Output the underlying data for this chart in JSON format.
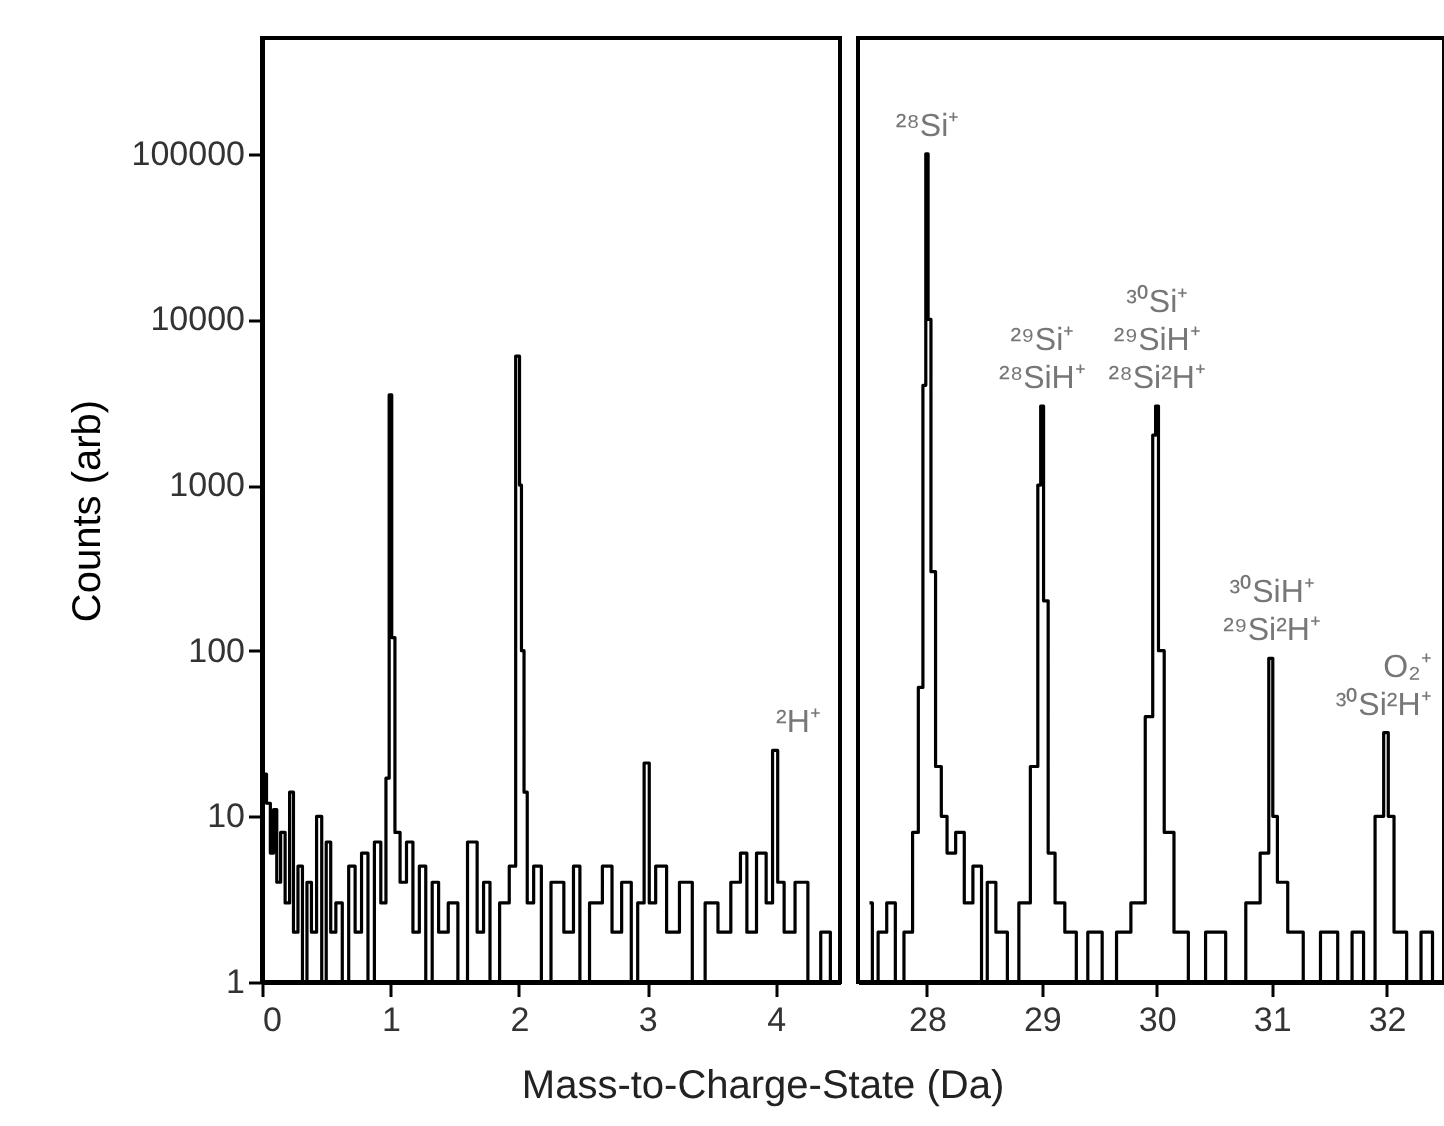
{
  "chart_data": [
    {
      "type": "step",
      "ylabel": "Counts (arb)",
      "xlabel": "Mass-to-Charge-State (Da)",
      "color": "#000000",
      "log": "y",
      "grid": false,
      "x": [
        0,
        0.02,
        0.05,
        0.08,
        0.1,
        0.13,
        0.16,
        0.2,
        0.23,
        0.26,
        0.3,
        0.33,
        0.37,
        0.4,
        0.45,
        0.48,
        0.52,
        0.55,
        0.6,
        0.65,
        0.7,
        0.75,
        0.8,
        0.85,
        0.9,
        0.95,
        0.98,
        1.0,
        1.02,
        1.05,
        1.1,
        1.15,
        1.2,
        1.25,
        1.3,
        1.35,
        1.4,
        1.5,
        1.55,
        1.65,
        1.7,
        1.75,
        1.8,
        1.9,
        1.95,
        2.0,
        2.01,
        2.03,
        2.05,
        2.08,
        2.15,
        2.2,
        2.3,
        2.4,
        2.45,
        2.5,
        2.6,
        2.7,
        2.75,
        2.85,
        2.9,
        2.95,
        3.0,
        3.03,
        3.1,
        3.2,
        3.3,
        3.4,
        3.5,
        3.6,
        3.7,
        3.75,
        3.8,
        3.9,
        3.95,
        4.0,
        4.03,
        4.1,
        4.2,
        4.3,
        4.4,
        4.45
      ],
      "values": [
        30,
        18,
        12,
        6,
        11,
        4,
        8,
        3,
        14,
        2,
        5,
        1,
        4,
        2,
        10,
        1,
        7,
        2,
        3,
        1,
        5,
        2,
        6,
        1,
        7,
        3,
        17,
        3500,
        120,
        8,
        4,
        7,
        2,
        5,
        1,
        4,
        2,
        3,
        1,
        7,
        2,
        4,
        1,
        3,
        5,
        6000,
        1000,
        100,
        14,
        3,
        5,
        1,
        4,
        2,
        5,
        1,
        3,
        5,
        2,
        4,
        1,
        3,
        21,
        3,
        5,
        2,
        4,
        1,
        3,
        2,
        4,
        6,
        2,
        6,
        3,
        25,
        4,
        2,
        4,
        1,
        2,
        1
      ],
      "xlim": [
        0,
        4.5
      ],
      "xticks": [
        0,
        1,
        2,
        3,
        4
      ],
      "ylim": [
        1,
        500000
      ],
      "yticks": [
        1,
        10,
        100,
        1000,
        10000,
        100000
      ],
      "annotations": [
        {
          "text": "²H⁺",
          "x": 4.0,
          "y": 25
        }
      ]
    },
    {
      "type": "step",
      "color": "#000000",
      "log": "y",
      "grid": false,
      "tick_labels": "x",
      "x": [
        27.5,
        27.55,
        27.6,
        27.7,
        27.75,
        27.85,
        27.9,
        27.95,
        27.98,
        28.0,
        28.02,
        28.05,
        28.1,
        28.15,
        28.2,
        28.3,
        28.35,
        28.45,
        28.5,
        28.55,
        28.65,
        28.75,
        28.85,
        28.95,
        28.98,
        29.0,
        29.03,
        29.08,
        29.15,
        29.25,
        29.35,
        29.45,
        29.6,
        29.7,
        29.85,
        29.95,
        29.98,
        30.0,
        30.03,
        30.1,
        30.2,
        30.35,
        30.5,
        30.7,
        30.85,
        30.95,
        31.0,
        31.02,
        31.08,
        31.2,
        31.35,
        31.5,
        31.65,
        31.75,
        31.85,
        31.95,
        32.0,
        32.03,
        32.1,
        32.25,
        32.35,
        32.45
      ],
      "values": [
        3,
        1,
        2,
        3,
        1,
        2,
        8,
        60,
        4000,
        100000,
        10000,
        300,
        20,
        10,
        6,
        8,
        3,
        5,
        1,
        4,
        2,
        1,
        3,
        20,
        1000,
        3000,
        200,
        6,
        3,
        2,
        1,
        2,
        1,
        2,
        3,
        40,
        2000,
        3000,
        100,
        8,
        2,
        1,
        2,
        1,
        3,
        6,
        90,
        10,
        4,
        2,
        1,
        2,
        1,
        2,
        1,
        10,
        32,
        10,
        2,
        1,
        2,
        1
      ],
      "xlim": [
        27.4,
        32.5
      ],
      "xticks": [
        28,
        29,
        30,
        31,
        32
      ],
      "ylim": [
        1,
        500000
      ],
      "yticks": [
        1,
        10,
        100,
        1000,
        10000,
        100000
      ],
      "annotations": [
        {
          "text": "²⁸Si⁺",
          "x": 28,
          "y": 100000
        },
        {
          "text": "²⁹Si⁺",
          "x": 29,
          "y": 3000
        },
        {
          "text": "²⁸SiH⁺",
          "x": 29,
          "y": 3000
        },
        {
          "text": "³⁰Si⁺",
          "x": 30,
          "y": 3000
        },
        {
          "text": "²⁹SiH⁺",
          "x": 30,
          "y": 3000
        },
        {
          "text": "²⁸Si²H⁺",
          "x": 30,
          "y": 3000
        },
        {
          "text": "³⁰SiH⁺",
          "x": 31,
          "y": 90
        },
        {
          "text": "²⁹Si²H⁺",
          "x": 31,
          "y": 90
        },
        {
          "text": "O₂⁺",
          "x": 32,
          "y": 32
        },
        {
          "text": "³⁰Si²H⁺",
          "x": 32,
          "y": 32
        }
      ]
    }
  ]
}
